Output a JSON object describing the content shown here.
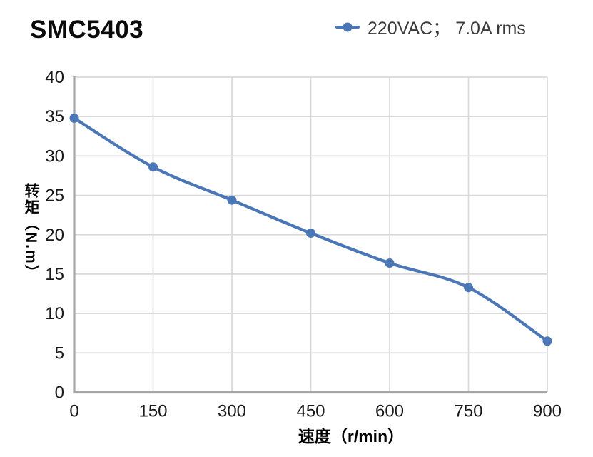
{
  "title": "SMC5403",
  "colors": {
    "accent": "#4c77b6",
    "grid": "#d9d9d9",
    "axis": "#a6a6a6",
    "tick_text": "#1a1a1a",
    "title_text": "#0a0a0a",
    "legend_text": "#3a3a3a"
  },
  "chart_data": {
    "type": "line",
    "title": "SMC5403",
    "x": [
      0,
      150,
      300,
      450,
      600,
      750,
      900
    ],
    "series": [
      {
        "name": "220VAC； 7.0A rms",
        "values": [
          34.8,
          28.6,
          24.4,
          20.2,
          16.4,
          13.3,
          6.5
        ]
      }
    ],
    "xlabel": "速度（r/min）",
    "ylabel": "转矩（N.m）",
    "xlim": [
      0,
      900
    ],
    "ylim": [
      0,
      40
    ],
    "xticks": [
      0,
      150,
      300,
      450,
      600,
      750,
      900
    ],
    "yticks": [
      0,
      5,
      10,
      15,
      20,
      25,
      30,
      35,
      40
    ],
    "grid": true,
    "legend_position": "top-right",
    "marker": "circle",
    "smooth": true
  }
}
